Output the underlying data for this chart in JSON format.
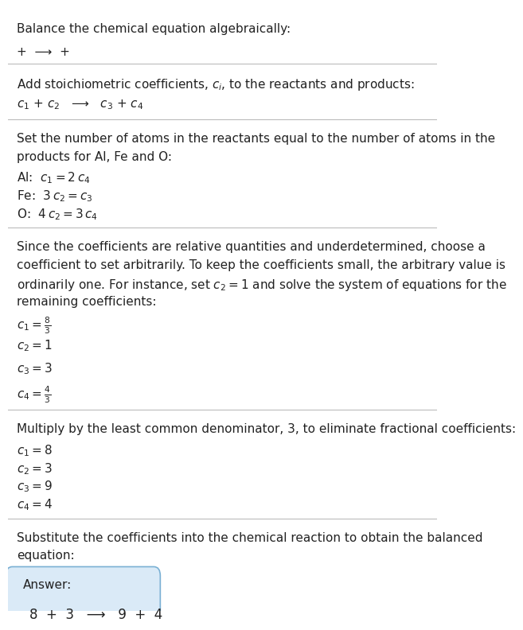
{
  "title": "Balance the chemical equation algebraically:",
  "line1": "+  ⟶  +",
  "section1_header": "Add stoichiometric coefficients, $c_i$, to the reactants and products:",
  "section1_eq": "$c_1$ + $c_2$   ⟶   $c_3$ + $c_4$",
  "section2_header_1": "Set the number of atoms in the reactants equal to the number of atoms in the",
  "section2_header_2": "products for Al, Fe and O:",
  "section2_lines": [
    "Al:  $c_1 = 2\\,c_4$",
    "Fe:  $3\\,c_2 = c_3$",
    "O:  $4\\,c_2 = 3\\,c_4$"
  ],
  "section3_header_1": "Since the coefficients are relative quantities and underdetermined, choose a",
  "section3_header_2": "coefficient to set arbitrarily. To keep the coefficients small, the arbitrary value is",
  "section3_header_3": "ordinarily one. For instance, set $c_2 = 1$ and solve the system of equations for the",
  "section3_header_4": "remaining coefficients:",
  "section3_lines": [
    "$c_1 = \\frac{8}{3}$",
    "$c_2 = 1$",
    "$c_3 = 3$",
    "$c_4 = \\frac{4}{3}$"
  ],
  "section4_header": "Multiply by the least common denominator, 3, to eliminate fractional coefficients:",
  "section4_lines": [
    "$c_1 = 8$",
    "$c_2 = 3$",
    "$c_3 = 9$",
    "$c_4 = 4$"
  ],
  "section5_header_1": "Substitute the coefficients into the chemical reaction to obtain the balanced",
  "section5_header_2": "equation:",
  "answer_label": "Answer:",
  "answer_eq": "8  +  3   ⟶   9  +  4",
  "bg_color": "#ffffff",
  "text_color": "#222222",
  "rule_color": "#bbbbbb",
  "answer_box_facecolor": "#daeaf7",
  "answer_box_edgecolor": "#7ab0d4",
  "font_size": 11,
  "title_font_size": 11
}
